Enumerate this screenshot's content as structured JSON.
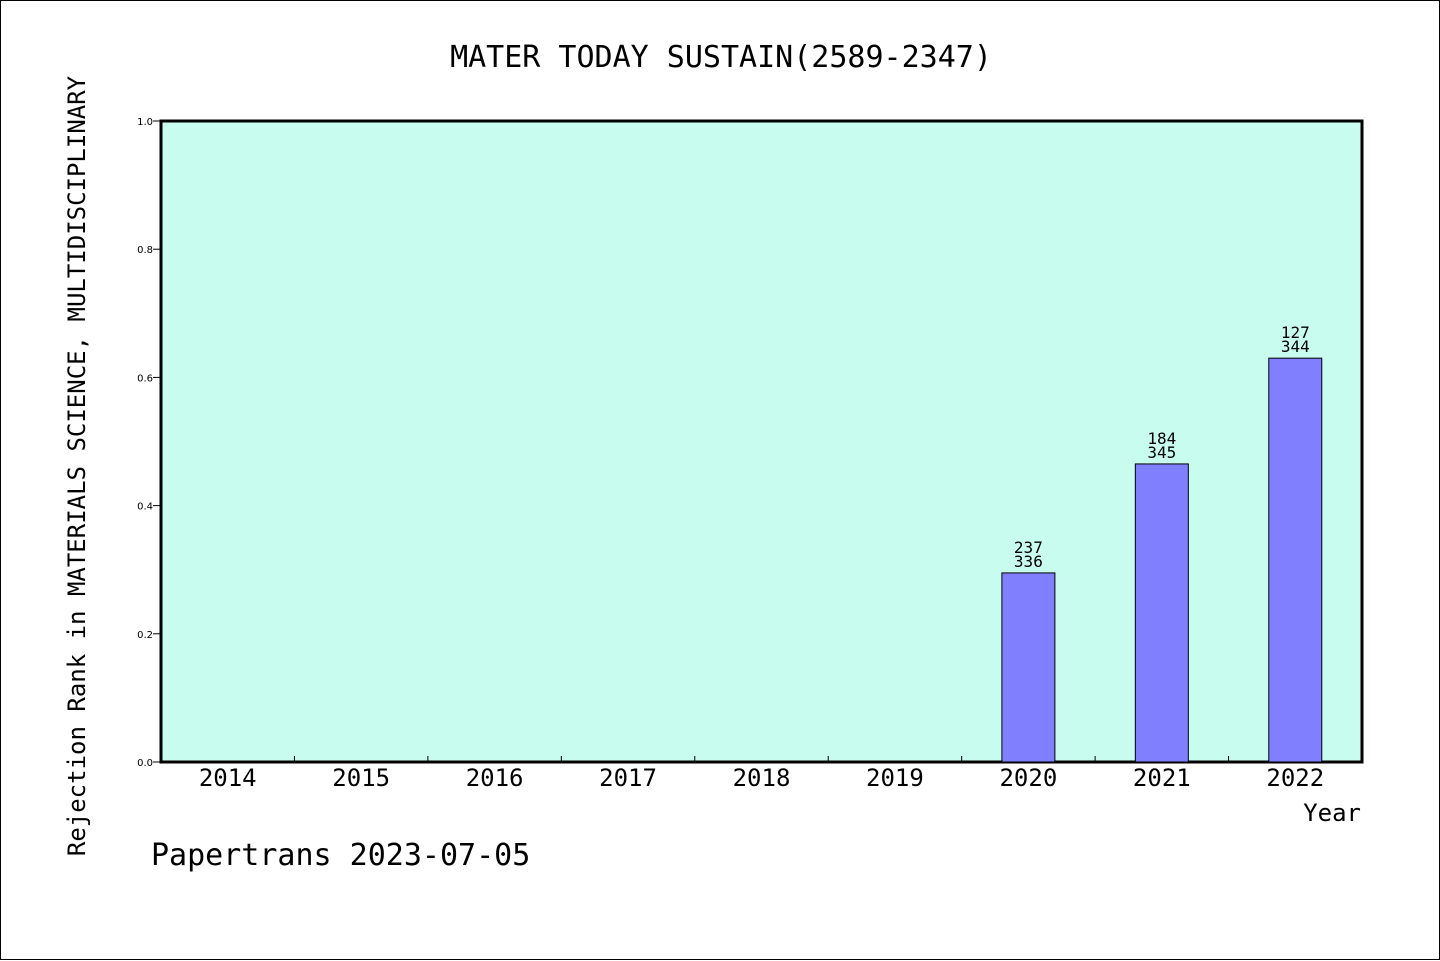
{
  "chart_data": {
    "type": "bar",
    "title": "MATER TODAY SUSTAIN(2589-2347)",
    "xlabel": "Year",
    "ylabel": "Rejection Rank in MATERIALS SCIENCE, MULTIDISCIPLINARY",
    "categories": [
      "2014",
      "2015",
      "2016",
      "2017",
      "2018",
      "2019",
      "2020",
      "2021",
      "2022"
    ],
    "values": [
      null,
      null,
      null,
      null,
      null,
      null,
      0.295,
      0.465,
      0.63
    ],
    "bar_labels": [
      null,
      null,
      null,
      null,
      null,
      null,
      {
        "top": "237",
        "bottom": "336"
      },
      {
        "top": "184",
        "bottom": "345"
      },
      {
        "top": "127",
        "bottom": "344"
      }
    ],
    "ylim": [
      0,
      1.0
    ],
    "yticks": [
      "0.0",
      "0.2",
      "0.4",
      "0.6",
      "0.8",
      "1.0"
    ],
    "grid": false,
    "colors": {
      "plot_background": "#c8fcee",
      "bar_fill": "#8080ff",
      "bar_stroke": "#000000"
    }
  },
  "footer": "Papertrans 2023-07-05"
}
